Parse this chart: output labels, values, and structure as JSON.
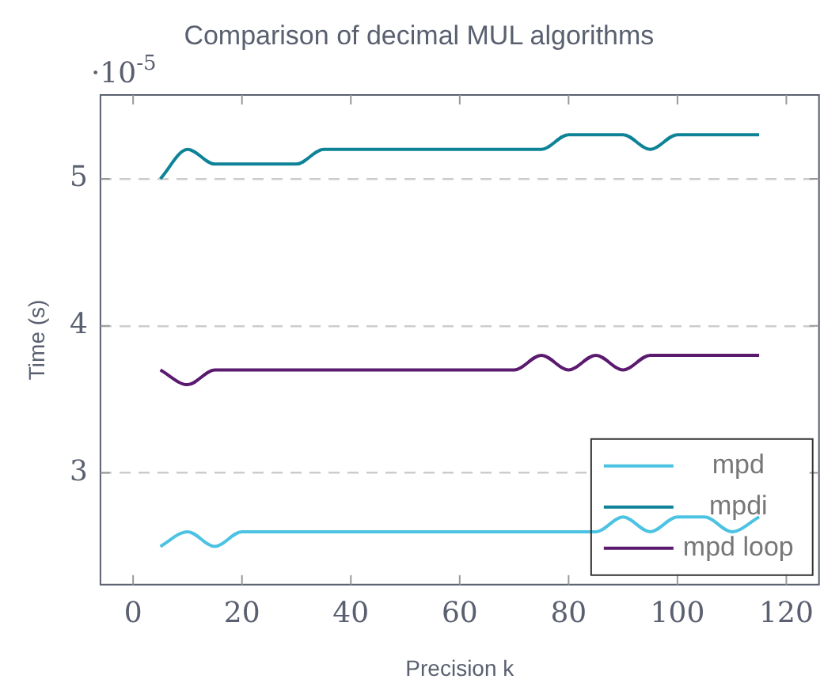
{
  "chart_data": {
    "type": "line",
    "title": "Comparison of decimal MUL algorithms",
    "xlabel": "Precision k",
    "ylabel": "Time (s)",
    "annotations": [
      "·10$^{-5}$"
    ],
    "x": [
      5,
      10,
      15,
      20,
      25,
      30,
      35,
      40,
      45,
      50,
      55,
      60,
      65,
      70,
      75,
      80,
      85,
      90,
      95,
      100,
      105,
      110,
      115
    ],
    "series": [
      {
        "name": "mpd",
        "color": "#4cc3e3",
        "values": [
          2.5,
          2.6,
          2.5,
          2.6,
          2.6,
          2.6,
          2.6,
          2.6,
          2.6,
          2.6,
          2.6,
          2.6,
          2.6,
          2.6,
          2.6,
          2.6,
          2.6,
          2.7,
          2.6,
          2.7,
          2.7,
          2.6,
          2.7
        ]
      },
      {
        "name": "mpdi",
        "color": "#0e8398",
        "values": [
          5.0,
          5.2,
          5.1,
          5.1,
          5.1,
          5.1,
          5.2,
          5.2,
          5.2,
          5.2,
          5.2,
          5.2,
          5.2,
          5.2,
          5.2,
          5.3,
          5.3,
          5.3,
          5.2,
          5.3,
          5.3,
          5.3,
          5.3
        ]
      },
      {
        "name": "mpd loop",
        "color": "#5a1a6e",
        "values": [
          3.7,
          3.6,
          3.7,
          3.7,
          3.7,
          3.7,
          3.7,
          3.7,
          3.7,
          3.7,
          3.7,
          3.7,
          3.7,
          3.7,
          3.8,
          3.7,
          3.8,
          3.7,
          3.8,
          3.8,
          3.8,
          3.8,
          3.8
        ]
      }
    ],
    "xlim": [
      -6,
      126
    ],
    "xticks": [
      0,
      20,
      40,
      60,
      80,
      100,
      120
    ],
    "ylim": [
      2.24,
      5.57
    ],
    "yticks": [
      3,
      4,
      5
    ],
    "grid": "y",
    "legend": "bottom right",
    "marker": "none",
    "line_style": "solid"
  }
}
